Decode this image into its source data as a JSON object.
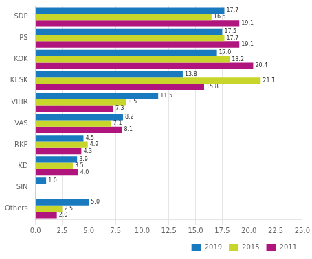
{
  "chart_data": {
    "type": "bar",
    "orientation": "horizontal",
    "categories": [
      "SDP",
      "PS",
      "KOK",
      "KESK",
      "VIHR",
      "VAS",
      "RKP",
      "KD",
      "SIN",
      "Others"
    ],
    "series": [
      {
        "name": "2019",
        "color": "#1a7abf",
        "values": [
          17.7,
          17.5,
          17.0,
          13.8,
          11.5,
          8.2,
          4.5,
          3.9,
          1.0,
          5.0
        ],
        "value_labels": [
          "17.7",
          "17.5",
          "17.0",
          "13.8",
          "11.5",
          "8.2",
          "4.5",
          "3.9",
          "1.0",
          "5.0"
        ]
      },
      {
        "name": "2015",
        "color": "#c8d62b",
        "values": [
          16.5,
          17.7,
          18.2,
          21.1,
          8.5,
          7.1,
          4.9,
          3.5,
          0.0,
          2.5
        ],
        "value_labels": [
          "16.5",
          "17.7",
          "18.2",
          "21.1",
          "8.5",
          "7.1",
          "4.9",
          "3.5",
          null,
          "2.5"
        ]
      },
      {
        "name": "2011",
        "color": "#b0157e",
        "values": [
          19.1,
          19.1,
          20.4,
          15.8,
          7.3,
          8.1,
          4.3,
          4.0,
          0.0,
          2.0
        ],
        "value_labels": [
          "19.1",
          "19.1",
          "20.4",
          "15.8",
          "7.3",
          "8.1",
          "4.3",
          "4.0",
          null,
          "2.0"
        ]
      }
    ],
    "xlim": [
      0,
      25.0
    ],
    "xticks": [
      {
        "value": 0,
        "label": "0.0"
      },
      2.5,
      {
        "value": 5,
        "label": "5.0"
      },
      7.5,
      {
        "value": 10,
        "label": "10.0"
      },
      12.5,
      {
        "value": 15,
        "label": "15.0"
      },
      17.5,
      {
        "value": 20,
        "label": "20.0"
      },
      22.5,
      {
        "value": 25,
        "label": "25.0"
      }
    ],
    "grid": true,
    "legend": "lower right",
    "data_labels": true
  }
}
